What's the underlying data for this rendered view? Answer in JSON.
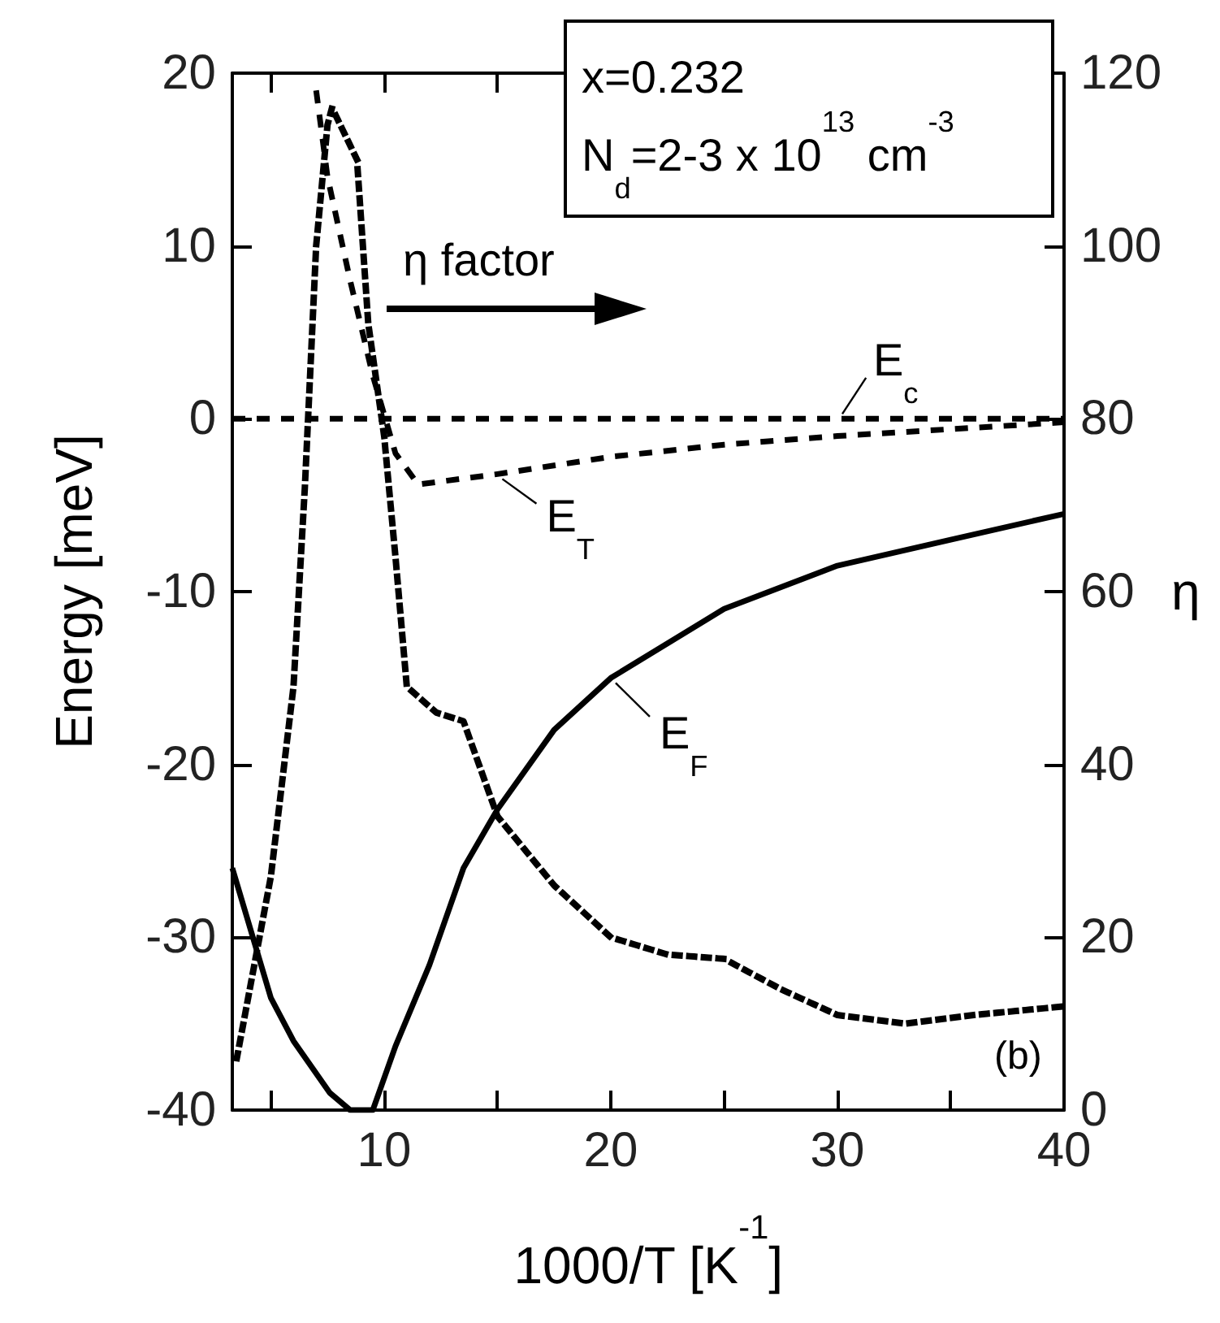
{
  "chart_data": {
    "type": "line",
    "xlabel": "1000/T [K$^{-1}$]",
    "ylabel": "Energy [meV]",
    "y2label": "η",
    "xlim": [
      3.3,
      40
    ],
    "xticks": [
      {
        "value": 5,
        "label": null
      },
      10,
      {
        "value": 15,
        "label": null
      },
      20,
      {
        "value": 25,
        "label": null
      },
      30,
      {
        "value": 35,
        "label": null
      },
      40
    ],
    "ylim": [
      -40,
      20
    ],
    "yticks": [
      -40,
      -30,
      -20,
      -10,
      0,
      10,
      20
    ],
    "y2lim": [
      0,
      120
    ],
    "y2ticks": [
      0,
      20,
      40,
      60,
      80,
      100,
      120
    ],
    "grid": false,
    "marker": "none",
    "series": [
      {
        "color": "#000000",
        "line_style": "dashed",
        "x": [
          3.3,
          40
        ],
        "values": [
          0,
          0
        ]
      },
      {
        "color": "#000000",
        "line_style": "dashed",
        "x": [
          7,
          7.5,
          8.5,
          9.5,
          10.5,
          11.5,
          15,
          20,
          25,
          30,
          35,
          40
        ],
        "values": [
          19,
          14,
          8,
          2.5,
          -2,
          -3.8,
          -3.2,
          -2.2,
          -1.5,
          -1,
          -0.6,
          -0.2
        ]
      },
      {
        "color": "#000000",
        "line_style": "solid",
        "x": [
          3.3,
          5,
          6,
          7.6,
          8.5,
          9.5,
          10.5,
          12,
          13.5,
          15,
          17.5,
          20,
          25,
          30,
          35,
          40
        ],
        "values": [
          -26,
          -33.5,
          -36,
          -39,
          -40,
          -40,
          -36.3,
          -31.6,
          -26,
          -22.6,
          -18,
          -15,
          -11,
          -8.5,
          -7,
          -5.5
        ]
      },
      {
        "color": "#000000",
        "line_style": "dotted",
        "axis": "y2",
        "x": [
          3.5,
          5,
          6,
          6.5,
          7,
          7.5,
          7.7,
          8.8,
          9.3,
          10,
          10.5,
          11,
          12.3,
          13.5,
          15,
          17.5,
          20,
          22.5,
          25,
          27.5,
          30,
          33,
          36,
          40
        ],
        "values": [
          6,
          27,
          49,
          72,
          100,
          114,
          116,
          110,
          91,
          78,
          64,
          49,
          46,
          45,
          34,
          26,
          20,
          18,
          17.5,
          14,
          11,
          10,
          11,
          12
        ]
      }
    ],
    "annotations": [
      "x=0.232",
      "N$_{d}$=2-3 x 10$^{13}$ cm$^{-3}$",
      "η factor",
      {
        "text": "E$_{c}$",
        "x": 30,
        "y": 0
      },
      {
        "text": "E$_{T}$",
        "x": 15,
        "y": -3.2
      },
      {
        "text": "E$_{F}$",
        "x": 20,
        "y": -15
      },
      "(b)"
    ]
  }
}
